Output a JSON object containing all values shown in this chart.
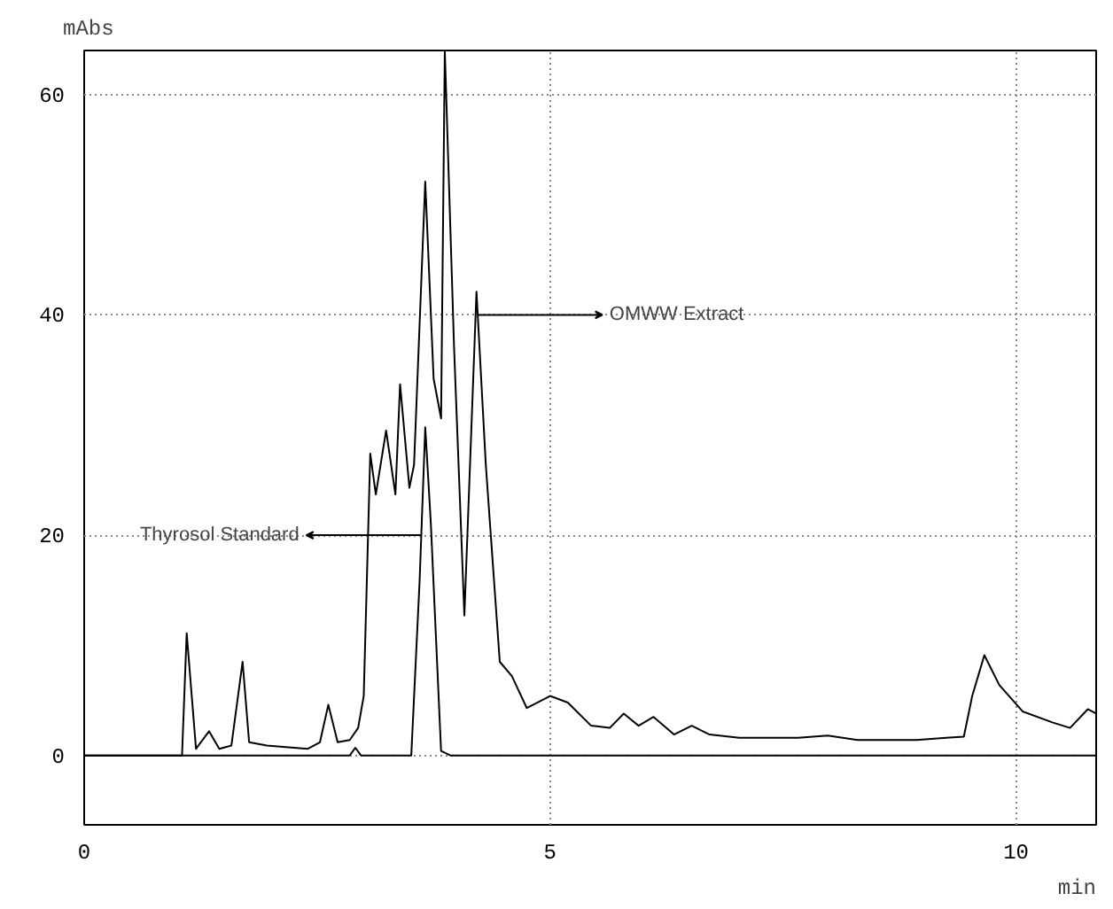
{
  "chart_data": {
    "type": "line",
    "xlabel": "min",
    "ylabel": "mAbs",
    "xlim": [
      0,
      10.86
    ],
    "ylim": [
      -6.3,
      64
    ],
    "xticks": [
      0,
      5,
      10
    ],
    "yticks": [
      0,
      20,
      40,
      60
    ],
    "grid": true,
    "line_style": "solid",
    "annotations": [
      {
        "text": "OMWW Extract",
        "x": 4.23,
        "y": 40
      },
      {
        "text": "Thyrosol Standard",
        "x": 3.62,
        "y": 20
      }
    ],
    "series": [
      {
        "color": "#000000",
        "x": [
          0,
          1.05,
          1.1,
          1.2,
          1.34,
          1.45,
          1.58,
          1.7,
          1.77,
          1.96,
          2.4,
          2.53,
          2.62,
          2.72,
          2.85,
          2.94,
          3.0,
          3.07,
          3.13,
          3.24,
          3.34,
          3.39,
          3.49,
          3.54,
          3.66,
          3.75,
          3.83,
          3.87,
          3.97,
          4.08,
          4.21,
          4.31,
          4.46,
          4.59,
          4.75,
          5.0,
          5.19,
          5.44,
          5.64,
          5.79,
          5.95,
          6.11,
          6.33,
          6.52,
          6.71,
          7.03,
          7.66,
          7.98,
          8.3,
          8.93,
          9.25,
          9.44,
          9.53,
          9.66,
          9.82,
          10.07,
          10.39,
          10.58,
          10.77,
          10.86
        ],
        "values": [
          0,
          0,
          11.1,
          0.6,
          2.2,
          0.6,
          0.9,
          8.5,
          1.2,
          0.9,
          0.6,
          1.2,
          4.6,
          1.2,
          1.4,
          2.5,
          5.4,
          27.4,
          23.7,
          29.5,
          23.7,
          33.7,
          24.3,
          26.4,
          52.1,
          34.2,
          30.6,
          64,
          36.9,
          12.7,
          42.1,
          26.4,
          8.5,
          7.2,
          4.3,
          5.4,
          4.8,
          2.7,
          2.5,
          3.8,
          2.7,
          3.5,
          1.9,
          2.7,
          1.9,
          1.6,
          1.6,
          1.8,
          1.4,
          1.4,
          1.6,
          1.7,
          5.4,
          9.1,
          6.4,
          4.0,
          3.0,
          2.5,
          4.2,
          3.8
        ]
      },
      {
        "color": "#000000",
        "x": [
          0,
          2.85,
          2.91,
          2.97,
          3.51,
          3.6,
          3.66,
          3.72,
          3.83,
          3.93,
          10.86
        ],
        "values": [
          0,
          0,
          0.7,
          0,
          0,
          15.9,
          29.8,
          21.1,
          0.4,
          0,
          0
        ]
      }
    ]
  }
}
